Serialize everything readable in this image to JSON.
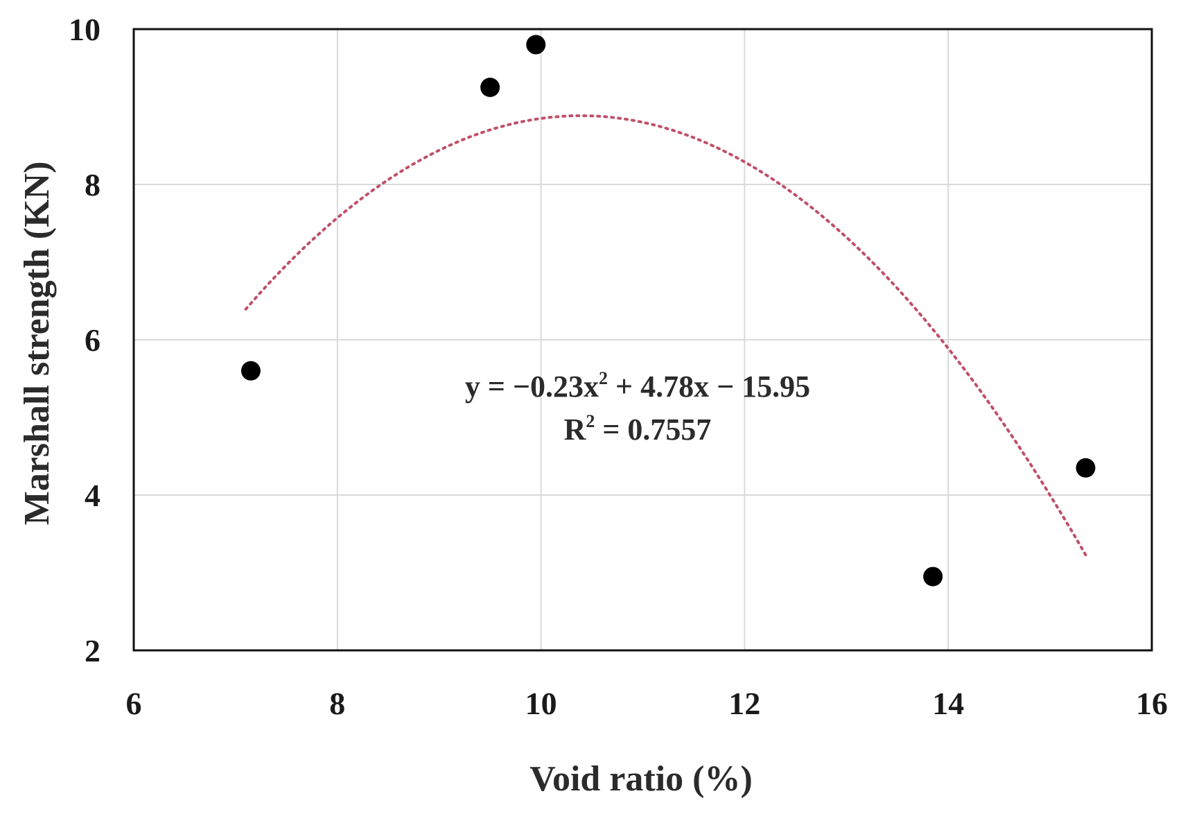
{
  "chart_data": {
    "type": "scatter",
    "xlabel": "Void ratio (%)",
    "ylabel": "Marshall strength (KN)",
    "xlim": [
      6,
      16
    ],
    "ylim": [
      2,
      10
    ],
    "xticks": [
      "6",
      "8",
      "10",
      "12",
      "14",
      "16"
    ],
    "yticks": [
      "2",
      "4",
      "6",
      "8",
      "10"
    ],
    "grid": true,
    "points": [
      {
        "x": 7.15,
        "y": 5.6
      },
      {
        "x": 9.5,
        "y": 9.25
      },
      {
        "x": 9.95,
        "y": 9.8
      },
      {
        "x": 13.85,
        "y": 2.95
      },
      {
        "x": 15.35,
        "y": 4.35
      }
    ],
    "trendline": {
      "type": "polynomial",
      "order": 2,
      "coefficients": [
        -0.23,
        4.78,
        -15.95
      ],
      "x_range": [
        7.1,
        15.35
      ],
      "style": "dotted",
      "color": "#c0506a"
    },
    "annotations": {
      "equation": {
        "y_part": "y = −0.23x",
        "sup": "2",
        "rest": " + 4.78x − 15.95"
      },
      "r_squared": {
        "r_part": "R",
        "sup": "2",
        "rest": " = 0.7557"
      }
    },
    "point_color": "#000000",
    "grid_color": "#d9d9d9"
  }
}
